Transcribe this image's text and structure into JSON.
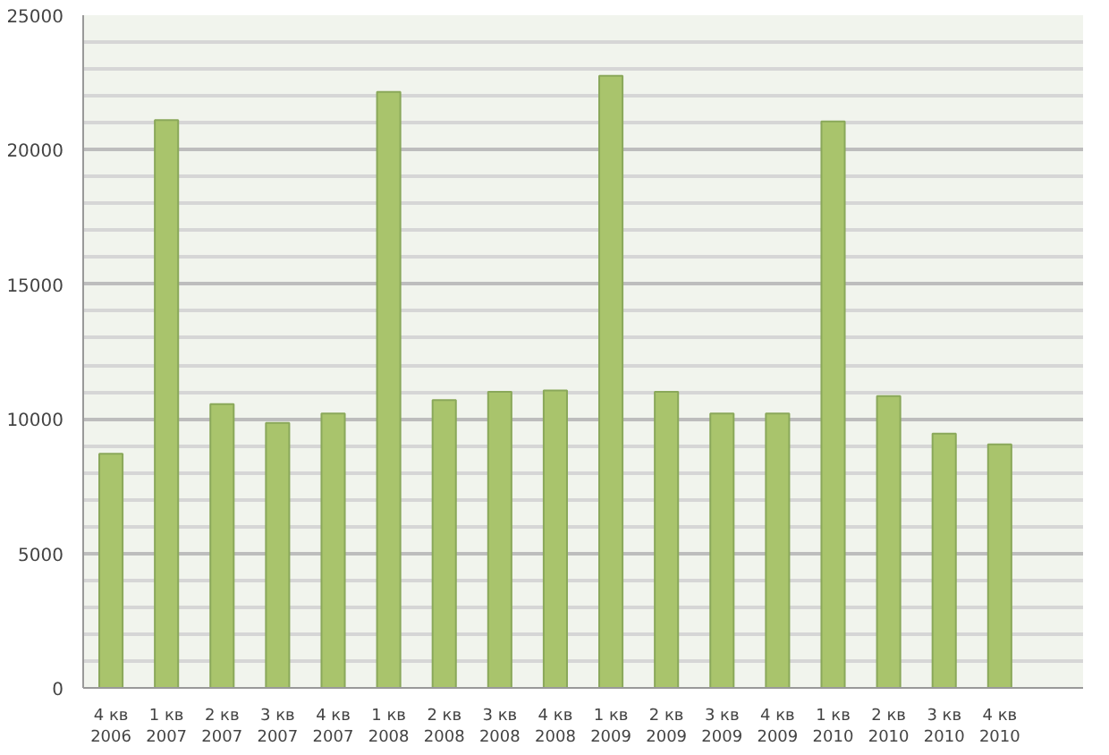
{
  "chart_data": {
    "type": "bar",
    "categories": [
      "4 кв\n2006",
      "1 кв\n2007",
      "2 кв\n2007",
      "3 кв\n2007",
      "4 кв\n2007",
      "1 кв\n2008",
      "2 кв\n2008",
      "3 кв\n2008",
      "4 кв\n2008",
      "1 кв\n2009",
      "2 кв\n2009",
      "3 кв\n2009",
      "4 кв\n2009",
      "1 кв\n2010",
      "2 кв\n2010",
      "3 кв\n2010",
      "4 кв\n2010",
      null
    ],
    "values": [
      8700,
      21100,
      10550,
      9850,
      10200,
      22150,
      10700,
      11000,
      11050,
      22750,
      11000,
      10200,
      10200,
      21050,
      10850,
      9450,
      9050,
      null
    ],
    "color": "#a9c46c",
    "ylim": [
      0,
      25000
    ],
    "yticks": [
      0,
      5000,
      10000,
      15000,
      20000,
      25000
    ],
    "grid": "y"
  }
}
